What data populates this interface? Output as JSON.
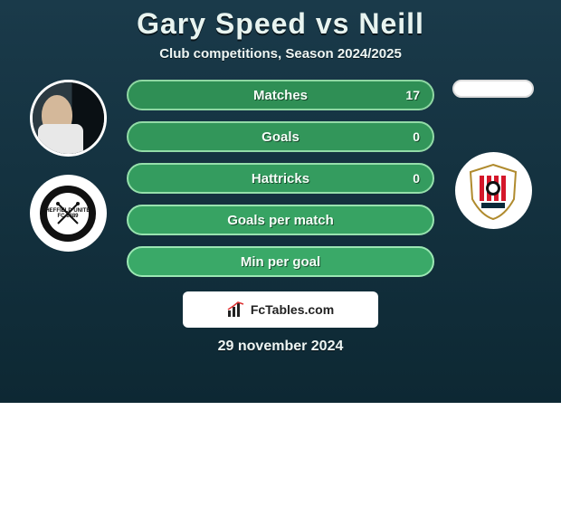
{
  "title": "Gary Speed vs Neill",
  "subtitle": "Club competitions, Season 2024/2025",
  "footer_date": "29 november 2024",
  "attribution": "FcTables.com",
  "colors": {
    "title": "#e8f4f0",
    "bg_top": "#1a3a4a",
    "bg_bottom": "#0d2833",
    "bar_fills": [
      "#2f8f55",
      "#32965a",
      "#349c5f",
      "#37a363",
      "#3aa968"
    ],
    "bar_borders": [
      "#8fd7a3",
      "#92dba7",
      "#95dfab",
      "#98e3af",
      "#9be7b3"
    ]
  },
  "left_badge_text": "SHEFFIELD UNITED FC 1889",
  "bars": [
    {
      "label": "Matches",
      "left": "",
      "right": "17"
    },
    {
      "label": "Goals",
      "left": "",
      "right": "0"
    },
    {
      "label": "Hattricks",
      "left": "",
      "right": "0"
    },
    {
      "label": "Goals per match",
      "left": "",
      "right": ""
    },
    {
      "label": "Min per goal",
      "left": "",
      "right": ""
    }
  ]
}
